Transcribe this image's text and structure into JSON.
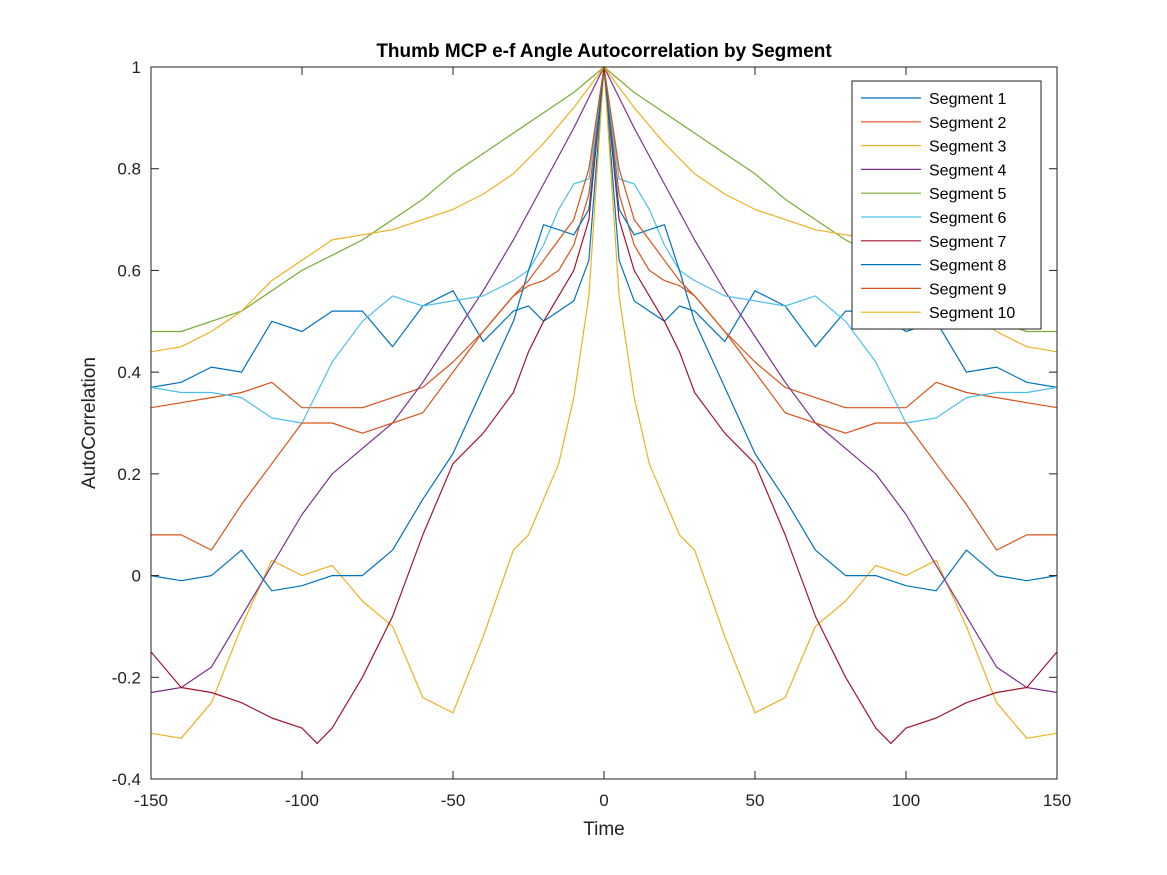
{
  "chart_data": {
    "type": "line",
    "title": "Thumb MCP e-f Angle Autocorrelation by Segment",
    "xlabel": "Time",
    "ylabel": "AutoCorrelation",
    "xlim": [
      -150,
      150
    ],
    "ylim": [
      -0.4,
      1
    ],
    "xticks": [
      "-150",
      "-100",
      "-50",
      "0",
      "50",
      "100",
      "150"
    ],
    "yticks": [
      "-0.4",
      "-0.2",
      "0",
      "0.2",
      "0.4",
      "0.6",
      "0.8",
      "1"
    ],
    "grid": false,
    "legend_position": "top-right",
    "symmetric_about_zero": true,
    "series": [
      {
        "name": "Segment 1",
        "color": "#0072BD",
        "x": [
          0,
          5,
          10,
          15,
          20,
          25,
          30,
          40,
          50,
          60,
          70,
          80,
          90,
          100,
          110,
          120,
          130,
          140,
          150
        ],
        "y": [
          1,
          0.62,
          0.54,
          0.52,
          0.5,
          0.53,
          0.52,
          0.46,
          0.56,
          0.53,
          0.45,
          0.52,
          0.52,
          0.48,
          0.5,
          0.4,
          0.41,
          0.38,
          0.37
        ]
      },
      {
        "name": "Segment 2",
        "color": "#D95319",
        "x": [
          0,
          5,
          10,
          15,
          20,
          25,
          30,
          40,
          50,
          60,
          70,
          80,
          90,
          100,
          110,
          120,
          130,
          140,
          150
        ],
        "y": [
          1,
          0.75,
          0.65,
          0.6,
          0.58,
          0.57,
          0.55,
          0.48,
          0.42,
          0.37,
          0.35,
          0.33,
          0.33,
          0.33,
          0.38,
          0.36,
          0.35,
          0.34,
          0.33
        ]
      },
      {
        "name": "Segment 3",
        "color": "#EDB120",
        "x": [
          0,
          5,
          10,
          15,
          20,
          25,
          30,
          40,
          50,
          60,
          70,
          80,
          90,
          100,
          110,
          120,
          130,
          140,
          150
        ],
        "y": [
          1,
          0.55,
          0.35,
          0.22,
          0.15,
          0.08,
          0.05,
          -0.12,
          -0.27,
          -0.24,
          -0.1,
          -0.05,
          0.02,
          0.0,
          0.03,
          -0.1,
          -0.25,
          -0.32,
          -0.31
        ]
      },
      {
        "name": "Segment 4",
        "color": "#7E2F8E",
        "x": [
          0,
          10,
          20,
          30,
          40,
          50,
          60,
          70,
          80,
          90,
          100,
          110,
          120,
          130,
          140,
          150
        ],
        "y": [
          1,
          0.88,
          0.77,
          0.66,
          0.56,
          0.47,
          0.38,
          0.3,
          0.25,
          0.2,
          0.12,
          0.02,
          -0.08,
          -0.18,
          -0.22,
          -0.23
        ]
      },
      {
        "name": "Segment 5",
        "color": "#77AC30",
        "x": [
          0,
          10,
          20,
          30,
          40,
          50,
          60,
          70,
          80,
          90,
          100,
          110,
          120,
          130,
          140,
          150
        ],
        "y": [
          1,
          0.95,
          0.91,
          0.87,
          0.83,
          0.79,
          0.74,
          0.7,
          0.66,
          0.63,
          0.6,
          0.56,
          0.52,
          0.5,
          0.48,
          0.48
        ]
      },
      {
        "name": "Segment 6",
        "color": "#4DBEEE",
        "x": [
          0,
          5,
          10,
          15,
          20,
          25,
          30,
          40,
          50,
          60,
          70,
          80,
          90,
          100,
          110,
          120,
          130,
          140,
          150
        ],
        "y": [
          1,
          0.78,
          0.77,
          0.72,
          0.65,
          0.6,
          0.58,
          0.55,
          0.54,
          0.53,
          0.55,
          0.5,
          0.42,
          0.3,
          0.31,
          0.35,
          0.36,
          0.36,
          0.37
        ]
      },
      {
        "name": "Segment 7",
        "color": "#A2142F",
        "x": [
          0,
          5,
          10,
          15,
          20,
          25,
          30,
          40,
          50,
          60,
          70,
          80,
          90,
          95,
          100,
          110,
          120,
          130,
          140,
          150
        ],
        "y": [
          1,
          0.7,
          0.6,
          0.55,
          0.5,
          0.44,
          0.36,
          0.28,
          0.22,
          0.08,
          -0.08,
          -0.2,
          -0.3,
          -0.33,
          -0.3,
          -0.28,
          -0.25,
          -0.23,
          -0.22,
          -0.15
        ]
      },
      {
        "name": "Segment 8",
        "color": "#0072BD",
        "x": [
          0,
          5,
          10,
          15,
          20,
          25,
          30,
          40,
          50,
          60,
          70,
          80,
          90,
          100,
          110,
          120,
          130,
          140,
          150
        ],
        "y": [
          1,
          0.72,
          0.67,
          0.68,
          0.69,
          0.6,
          0.5,
          0.37,
          0.24,
          0.15,
          0.05,
          0.0,
          0.0,
          -0.02,
          -0.03,
          0.05,
          0.0,
          -0.01,
          0.0
        ]
      },
      {
        "name": "Segment 9",
        "color": "#D95319",
        "x": [
          0,
          5,
          10,
          15,
          20,
          25,
          30,
          40,
          50,
          60,
          70,
          80,
          90,
          100,
          110,
          120,
          130,
          140,
          150
        ],
        "y": [
          1,
          0.8,
          0.7,
          0.66,
          0.62,
          0.58,
          0.55,
          0.48,
          0.4,
          0.32,
          0.3,
          0.28,
          0.3,
          0.3,
          0.22,
          0.14,
          0.05,
          0.08,
          0.08
        ]
      },
      {
        "name": "Segment 10",
        "color": "#EDB120",
        "x": [
          0,
          10,
          20,
          30,
          40,
          50,
          60,
          70,
          80,
          90,
          100,
          110,
          120,
          130,
          140,
          150
        ],
        "y": [
          1,
          0.92,
          0.85,
          0.79,
          0.75,
          0.72,
          0.7,
          0.68,
          0.67,
          0.66,
          0.62,
          0.58,
          0.52,
          0.48,
          0.45,
          0.44
        ]
      }
    ]
  }
}
